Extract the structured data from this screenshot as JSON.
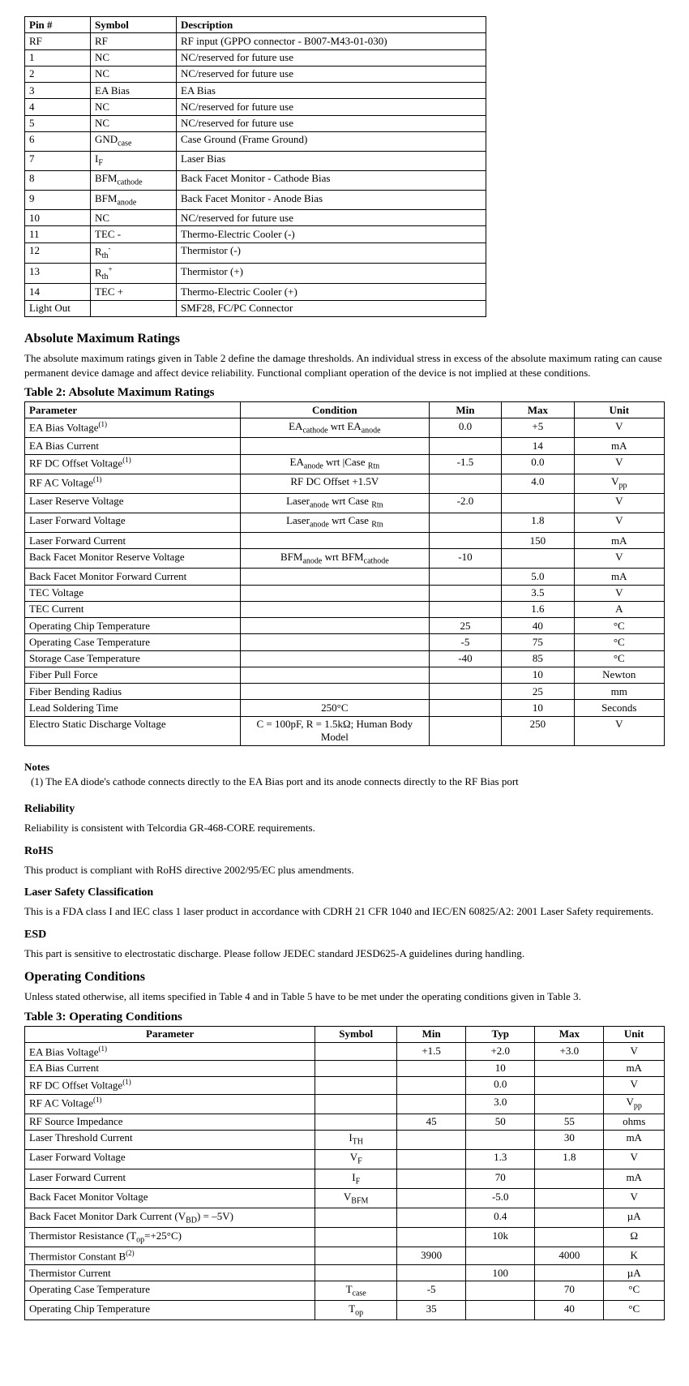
{
  "pin_table": {
    "columns": [
      "Pin #",
      "Symbol",
      "Description"
    ],
    "rows": [
      {
        "pin": "RF",
        "symbol": "RF",
        "desc": "RF input (GPPO connector - B007-M43-01-030)"
      },
      {
        "pin": "1",
        "symbol": "NC",
        "desc": "NC/reserved for future use"
      },
      {
        "pin": "2",
        "symbol": "NC",
        "desc": "NC/reserved for future use"
      },
      {
        "pin": "3",
        "symbol": "EA Bias",
        "desc": "EA Bias"
      },
      {
        "pin": "4",
        "symbol": "NC",
        "desc": "NC/reserved for future use"
      },
      {
        "pin": "5",
        "symbol": "NC",
        "desc": "NC/reserved for future use"
      },
      {
        "pin": "6",
        "symbol_html": "GND<sub>case</sub>",
        "desc": "Case Ground (Frame Ground)"
      },
      {
        "pin": "7",
        "symbol_html": "I<sub>F</sub>",
        "desc": "Laser Bias"
      },
      {
        "pin": "8",
        "symbol_html": "BFM<sub>cathode</sub>",
        "desc": "Back Facet Monitor - Cathode Bias"
      },
      {
        "pin": "9",
        "symbol_html": "BFM<sub>anode</sub>",
        "desc": "Back Facet Monitor - Anode Bias"
      },
      {
        "pin": "10",
        "symbol": "NC",
        "desc": "NC/reserved for future use"
      },
      {
        "pin": "11",
        "symbol": "TEC -",
        "desc": "Thermo-Electric Cooler (-)"
      },
      {
        "pin": "12",
        "symbol_html": "R<sub>th</sub><sup>-</sup>",
        "desc": "Thermistor (-)"
      },
      {
        "pin": "13",
        "symbol_html": "R<sub>th</sub><sup>+</sup>",
        "desc": "Thermistor (+)"
      },
      {
        "pin": "14",
        "symbol": "TEC +",
        "desc": "Thermo-Electric Cooler (+)"
      },
      {
        "pin": "Light Out",
        "symbol": "",
        "desc": "SMF28, FC/PC Connector"
      }
    ]
  },
  "abs_heading": "Absolute Maximum Ratings",
  "abs_intro": "The absolute maximum ratings given in Table 2 define the damage thresholds.  An individual stress in excess of the absolute maximum rating can cause permanent device damage and affect device reliability.  Functional compliant operation of the device is not implied at these conditions.",
  "abs_caption": "Table 2:  Absolute Maximum Ratings",
  "abs_table": {
    "columns": [
      "Parameter",
      "Condition",
      "Min",
      "Max",
      "Unit"
    ],
    "rows": [
      {
        "param_html": "EA Bias Voltage<sup>(1)</sup>",
        "cond_html": "EA<sub>cathode</sub> wrt EA<sub>anode</sub>",
        "min": "0.0",
        "max": "+5",
        "unit": "V"
      },
      {
        "param": "EA Bias Current",
        "cond": "",
        "min": "",
        "max": "14",
        "unit": "mA"
      },
      {
        "param_html": "RF DC Offset Voltage<sup>(1)</sup>",
        "cond_html": "EA<sub>anode</sub> wrt |Case <sub>Rtn</sub>",
        "min": "-1.5",
        "max": "0.0",
        "unit": "V"
      },
      {
        "param_html": "RF AC Voltage<sup>(1)</sup>",
        "cond": "RF DC Offset +1.5V",
        "min": "",
        "max": "4.0",
        "unit_html": "V<sub>pp</sub>"
      },
      {
        "param": "Laser Reserve Voltage",
        "cond_html": "Laser<sub>anode</sub> wrt Case <sub>Rtn</sub>",
        "min": "-2.0",
        "max": "",
        "unit": "V"
      },
      {
        "param": "Laser Forward Voltage",
        "cond_html": "Laser<sub>anode</sub> wrt Case <sub>Rtn</sub>",
        "min": "",
        "max": "1.8",
        "unit": "V"
      },
      {
        "param": "Laser Forward Current",
        "cond": "",
        "min": "",
        "max": "150",
        "unit": "mA"
      },
      {
        "param": "Back Facet Monitor Reserve Voltage",
        "cond_html": "BFM<sub>anode</sub> wrt BFM<sub>cathode</sub>",
        "min": "-10",
        "max": "",
        "unit": "V"
      },
      {
        "param": "Back Facet Monitor Forward Current",
        "cond": "",
        "min": "",
        "max": "5.0",
        "unit": "mA"
      },
      {
        "param": "TEC Voltage",
        "cond": "",
        "min": "",
        "max": "3.5",
        "unit": "V"
      },
      {
        "param": "TEC Current",
        "cond": "",
        "min": "",
        "max": "1.6",
        "unit": "A"
      },
      {
        "param": "Operating Chip Temperature",
        "cond": "",
        "min": "25",
        "max": "40",
        "unit": "°C"
      },
      {
        "param": "Operating Case Temperature",
        "cond": "",
        "min": "-5",
        "max": "75",
        "unit": "°C"
      },
      {
        "param": "Storage Case Temperature",
        "cond": "",
        "min": "-40",
        "max": "85",
        "unit": "°C"
      },
      {
        "param": "Fiber Pull Force",
        "cond": "",
        "min": "",
        "max": "10",
        "unit": "Newton"
      },
      {
        "param": "Fiber Bending Radius",
        "cond": "",
        "min": "",
        "max": "25",
        "unit": "mm"
      },
      {
        "param": "Lead Soldering Time",
        "cond": "250°C",
        "min": "",
        "max": "10",
        "unit": "Seconds"
      },
      {
        "param": "Electro Static Discharge Voltage",
        "cond": "C = 100pF, R = 1.5kΩ; Human Body Model",
        "min": "",
        "max": "250",
        "unit": "V"
      }
    ]
  },
  "notes_title": "Notes",
  "notes_1": "(1)  The EA diode's cathode connects directly to the EA Bias port and its anode connects directly to the RF Bias port",
  "reliability_heading": "Reliability",
  "reliability_text": "Reliability is consistent with Telcordia GR-468-CORE requirements.",
  "rohs_heading": "RoHS",
  "rohs_text": "This product is compliant with RoHS directive 2002/95/EC plus amendments.",
  "laser_heading": "Laser Safety Classification",
  "laser_text": "This is a FDA class I and IEC class 1 laser product in accordance with CDRH 21 CFR 1040 and IEC/EN 60825/A2: 2001 Laser Safety requirements.",
  "esd_heading": "ESD",
  "esd_text": "This part is sensitive to electrostatic discharge.  Please follow JEDEC standard JESD625-A guidelines during handling.",
  "op_heading": "Operating Conditions",
  "op_intro": "Unless stated otherwise, all items specified in Table 4 and in Table 5 have to be met under the operating conditions given in Table 3.",
  "op_caption": "Table 3:  Operating Conditions",
  "op_table": {
    "columns": [
      "Parameter",
      "Symbol",
      "Min",
      "Typ",
      "Max",
      "Unit"
    ],
    "rows": [
      {
        "param_html": "EA Bias Voltage<sup>(1)</sup>",
        "symbol": "",
        "min": "+1.5",
        "typ": "+2.0",
        "max": "+3.0",
        "unit": "V"
      },
      {
        "param": "EA Bias Current",
        "symbol": "",
        "min": "",
        "typ": "10",
        "max": "",
        "unit": "mA"
      },
      {
        "param_html": "RF DC Offset Voltage<sup>(1)</sup>",
        "symbol": "",
        "min": "",
        "typ": "0.0",
        "max": "",
        "unit": "V"
      },
      {
        "param_html": "RF AC Voltage<sup>(1)</sup>",
        "symbol": "",
        "min": "",
        "typ": "3.0",
        "max": "",
        "unit_html": "V<sub>pp</sub>"
      },
      {
        "param": "RF Source Impedance",
        "symbol": "",
        "min": "45",
        "typ": "50",
        "max": "55",
        "unit": "ohms"
      },
      {
        "param": "Laser Threshold Current",
        "symbol_html": "I<sub>TH</sub>",
        "min": "",
        "typ": "",
        "max": "30",
        "unit": "mA"
      },
      {
        "param": "Laser Forward Voltage",
        "symbol_html": "V<sub>F</sub>",
        "min": "",
        "typ": "1.3",
        "max": "1.8",
        "unit": "V"
      },
      {
        "param": "Laser Forward Current",
        "symbol_html": "I<sub>F</sub>",
        "min": "",
        "typ": "70",
        "max": "",
        "unit": "mA"
      },
      {
        "param": "Back Facet Monitor Voltage",
        "symbol_html": "V<sub>BFM</sub>",
        "min": "",
        "typ": "-5.0",
        "max": "",
        "unit": "V"
      },
      {
        "param_html": "Back Facet Monitor Dark Current (V<sub>BD</sub>) = –5V)",
        "symbol": "",
        "min": "",
        "typ": "0.4",
        "max": "",
        "unit": "µA"
      },
      {
        "param_html": "Thermistor Resistance (T<sub>op</sub>=+25°C)",
        "symbol": "",
        "min": "",
        "typ": "10k",
        "max": "",
        "unit": "Ω"
      },
      {
        "param_html": "Thermistor Constant B<sup>(2)</sup>",
        "symbol": "",
        "min": "3900",
        "typ": "",
        "max": "4000",
        "unit": "K"
      },
      {
        "param": "Thermistor Current",
        "symbol": "",
        "min": "",
        "typ": "100",
        "max": "",
        "unit": "µA"
      },
      {
        "param": "Operating Case Temperature",
        "symbol_html": "T<sub>case</sub>",
        "min": "-5",
        "typ": "",
        "max": "70",
        "unit": "°C"
      },
      {
        "param": "Operating Chip Temperature",
        "symbol_html": "T<sub>op</sub>",
        "min": "35",
        "typ": "",
        "max": "40",
        "unit": "°C"
      }
    ]
  }
}
